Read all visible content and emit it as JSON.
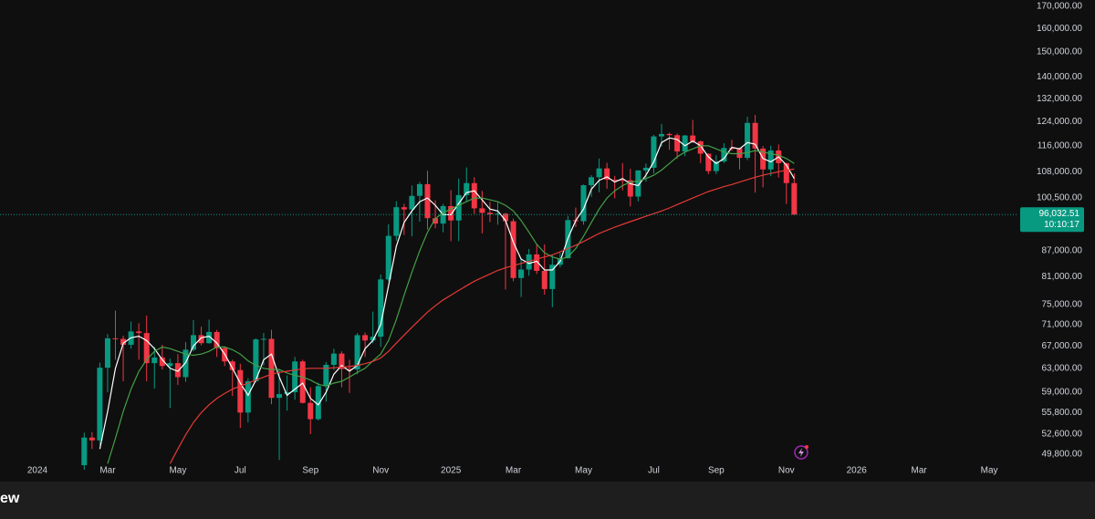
{
  "chart_data": {
    "type": "candlestick",
    "log_scale": true,
    "grid": false,
    "up_color": "#089981",
    "down_color": "#f23645",
    "ylim": [
      48300,
      173000
    ],
    "yticks": [
      {
        "value": 170000,
        "label": "170,000.00"
      },
      {
        "value": 160000,
        "label": "160,000.00"
      },
      {
        "value": 150000,
        "label": "150,000.00"
      },
      {
        "value": 140000,
        "label": "140,000.00"
      },
      {
        "value": 132000,
        "label": "132,000.00"
      },
      {
        "value": 124000,
        "label": "124,000.00"
      },
      {
        "value": 116000,
        "label": "116,000.00"
      },
      {
        "value": 108000,
        "label": "108,000.00"
      },
      {
        "value": 100500,
        "label": "100,500.00"
      },
      {
        "value": 87000,
        "label": "87,000.00"
      },
      {
        "value": 81000,
        "label": "81,000.00"
      },
      {
        "value": 75000,
        "label": "75,000.00"
      },
      {
        "value": 71000,
        "label": "71,000.00"
      },
      {
        "value": 67000,
        "label": "67,000.00"
      },
      {
        "value": 63000,
        "label": "63,000.00"
      },
      {
        "value": 59000,
        "label": "59,000.00"
      },
      {
        "value": 55800,
        "label": "55,800.00"
      },
      {
        "value": 52600,
        "label": "52,600.00"
      },
      {
        "value": 49800,
        "label": "49,800.00"
      }
    ],
    "last_price": {
      "value": 96032.51,
      "label": "96,032.51",
      "countdown": "10:10:17",
      "color": "#089981"
    },
    "categories": [
      "2024",
      null,
      null,
      null,
      null,
      null,
      null,
      null,
      null,
      "Mar",
      null,
      null,
      null,
      null,
      null,
      null,
      null,
      null,
      "May",
      null,
      null,
      null,
      null,
      null,
      null,
      null,
      "Jul",
      null,
      null,
      null,
      null,
      null,
      null,
      null,
      null,
      "Sep",
      null,
      null,
      null,
      null,
      null,
      null,
      null,
      null,
      "Nov",
      null,
      null,
      null,
      null,
      null,
      null,
      null,
      null,
      "2025",
      null,
      null,
      null,
      null,
      null,
      null,
      null,
      "Mar",
      null,
      null,
      null,
      null,
      null,
      null,
      null,
      null,
      "May",
      null,
      null,
      null,
      null,
      null,
      null,
      null,
      null,
      "Jul",
      null,
      null,
      null,
      null,
      null,
      null,
      null,
      "Sep",
      null,
      null,
      null,
      null,
      null,
      null,
      null,
      null,
      "Nov",
      null,
      null,
      null,
      null,
      null,
      null,
      null,
      null,
      "2026",
      null,
      null,
      null,
      null,
      null,
      null,
      null,
      "Mar",
      null,
      null,
      null,
      null,
      null,
      null,
      null,
      null,
      "May",
      null,
      null,
      null
    ],
    "open": [
      null,
      null,
      null,
      null,
      null,
      null,
      48300,
      52100,
      51700,
      63100,
      68400,
      68300,
      67200,
      69700,
      69400,
      63900,
      64900,
      63400,
      63900,
      61500,
      66300,
      69000,
      67500,
      69600,
      66600,
      64200,
      62700,
      55800,
      60800,
      68200,
      68300,
      58100,
      58700,
      59000,
      64200,
      57300,
      54800,
      60000,
      63600,
      65600,
      62900,
      62800,
      69000,
      68000,
      68700,
      80400,
      90600,
      98000,
      97400,
      101100,
      104400,
      95100,
      93700,
      98300,
      94500,
      101300,
      104700,
      97700,
      96500,
      96100,
      96300,
      94300,
      80700,
      82600,
      86100,
      82300,
      78300,
      83700,
      85200,
      94600,
      94300,
      104100,
      106400,
      109000,
      105700,
      105600,
      105500,
      100900,
      108400,
      109200,
      119000,
      119800,
      119400,
      114200,
      119300,
      117400,
      113500,
      108200,
      111100,
      115300,
      115200,
      112200,
      123500,
      115100,
      108700,
      114500,
      110600,
      104700,
      null,
      null,
      null,
      null,
      null,
      null,
      null,
      null,
      null,
      null,
      null,
      null,
      null,
      null,
      null,
      null,
      null,
      null,
      null,
      null,
      null,
      null,
      null,
      null,
      null,
      null,
      null,
      null
    ],
    "high": [
      null,
      null,
      null,
      null,
      null,
      null,
      52800,
      52900,
      64000,
      69200,
      73800,
      68900,
      71600,
      71300,
      72800,
      66800,
      67200,
      64700,
      65500,
      67700,
      71900,
      70600,
      72000,
      70000,
      66900,
      64500,
      63800,
      61300,
      68400,
      69400,
      70000,
      62700,
      61800,
      65000,
      64500,
      59800,
      60600,
      64100,
      66500,
      66000,
      64500,
      69400,
      69500,
      73600,
      81500,
      93500,
      99600,
      98900,
      104000,
      105000,
      108300,
      99900,
      98900,
      102700,
      106000,
      109300,
      106400,
      102500,
      99500,
      99500,
      96500,
      95000,
      85300,
      87400,
      88700,
      88500,
      86000,
      86500,
      95700,
      97900,
      104300,
      107000,
      112000,
      110700,
      106800,
      110600,
      108900,
      108500,
      110500,
      119500,
      123200,
      120200,
      120000,
      119500,
      124500,
      117600,
      113600,
      113000,
      116800,
      117900,
      115400,
      125600,
      126200,
      115900,
      116000,
      116400,
      110700,
      107500,
      null,
      null,
      null,
      null,
      null,
      null,
      null,
      null,
      null,
      null,
      null,
      null,
      null,
      null,
      null,
      null,
      null,
      null,
      null,
      null,
      null,
      null,
      null,
      null,
      null,
      null,
      null,
      null
    ],
    "low": [
      null,
      null,
      null,
      null,
      null,
      null,
      47700,
      50500,
      51000,
      59000,
      64500,
      60800,
      66500,
      64500,
      60800,
      59600,
      62800,
      56500,
      60200,
      60700,
      66000,
      67100,
      67400,
      65000,
      63400,
      58400,
      53500,
      54300,
      60600,
      63500,
      57100,
      49000,
      56100,
      57800,
      57200,
      52600,
      54600,
      57500,
      62700,
      59800,
      58900,
      62000,
      65000,
      67500,
      66800,
      80000,
      89400,
      90800,
      90500,
      94200,
      92200,
      92500,
      91500,
      89300,
      89300,
      99500,
      96200,
      91200,
      94100,
      93400,
      78200,
      80000,
      76600,
      81200,
      81600,
      77100,
      74500,
      83100,
      85100,
      92800,
      93400,
      100800,
      102100,
      103100,
      100400,
      102600,
      98200,
      99600,
      105100,
      107500,
      115700,
      114700,
      111900,
      112700,
      116800,
      110600,
      107300,
      107300,
      110600,
      114400,
      108700,
      111500,
      102000,
      103500,
      106700,
      106300,
      98900,
      95900,
      null,
      null,
      null,
      null,
      null,
      null,
      null,
      null,
      null,
      null,
      null,
      null,
      null,
      null,
      null,
      null,
      null,
      null,
      null,
      null,
      null,
      null,
      null,
      null,
      null,
      null,
      null,
      null
    ],
    "close": [
      null,
      null,
      null,
      null,
      null,
      null,
      52100,
      51700,
      63100,
      68400,
      68300,
      67200,
      69700,
      69400,
      63900,
      64900,
      63400,
      63900,
      61500,
      66300,
      69000,
      67500,
      69600,
      66600,
      64200,
      62700,
      55800,
      60800,
      68200,
      68300,
      58100,
      58700,
      59000,
      64200,
      57300,
      54800,
      60000,
      63600,
      65600,
      62900,
      62800,
      69000,
      68000,
      68700,
      80400,
      90600,
      98000,
      97400,
      101100,
      104400,
      95100,
      93700,
      98300,
      94500,
      101300,
      104700,
      97700,
      96500,
      96100,
      96300,
      94300,
      80700,
      82600,
      86100,
      82300,
      78300,
      83700,
      85200,
      94600,
      94300,
      104100,
      106400,
      109000,
      105700,
      105600,
      105500,
      100900,
      108400,
      109200,
      119000,
      119800,
      119400,
      114200,
      119300,
      117400,
      113500,
      108200,
      111100,
      115300,
      115200,
      112200,
      123500,
      115100,
      108700,
      114500,
      110600,
      104700,
      96032.51,
      null,
      null,
      null,
      null,
      null,
      null,
      null,
      null,
      null,
      null,
      null,
      null,
      null,
      null,
      null,
      null,
      null,
      null,
      null,
      null,
      null,
      null,
      null,
      null,
      null,
      null,
      null,
      null
    ],
    "moving_averages": [
      {
        "color": "#ffffff",
        "values": [
          null,
          null,
          null,
          null,
          null,
          null,
          null,
          null,
          50500,
          56000,
          63000,
          67500,
          68500,
          68800,
          68000,
          66500,
          64500,
          63000,
          62500,
          64000,
          67000,
          68500,
          68800,
          67500,
          65500,
          63000,
          60500,
          58500,
          61000,
          64500,
          65500,
          61500,
          58500,
          59500,
          60500,
          58000,
          57000,
          59000,
          62000,
          63500,
          62500,
          63500,
          66500,
          68000,
          71000,
          79000,
          88000,
          94000,
          97000,
          99500,
          100500,
          98500,
          96000,
          96000,
          99000,
          102000,
          102500,
          100000,
          97500,
          97000,
          94500,
          89000,
          85000,
          84000,
          84500,
          82500,
          82500,
          84500,
          90000,
          94500,
          97500,
          103000,
          105500,
          106500,
          105000,
          106000,
          104500,
          104000,
          107000,
          111000,
          117000,
          118500,
          118000,
          116000,
          117500,
          116000,
          112500,
          110500,
          112000,
          115500,
          115000,
          117000,
          116500,
          112000,
          111000,
          112500,
          110000,
          106000,
          null,
          null,
          null,
          null,
          null,
          null,
          null,
          null,
          null,
          null,
          null,
          null,
          null,
          null,
          null,
          null,
          null,
          null,
          null,
          null,
          null,
          null,
          null,
          null,
          null,
          null,
          null,
          null
        ]
      },
      {
        "color": "#43a047",
        "values": [
          null,
          null,
          null,
          null,
          null,
          null,
          null,
          null,
          null,
          48500,
          52000,
          56000,
          59500,
          62500,
          64500,
          66000,
          66800,
          66500,
          66000,
          65500,
          65300,
          65500,
          66000,
          66800,
          66800,
          66300,
          65500,
          64300,
          63500,
          63000,
          62800,
          62800,
          62200,
          61800,
          61500,
          61000,
          60300,
          60000,
          60500,
          60800,
          61500,
          62300,
          63000,
          64300,
          65500,
          68000,
          72000,
          77000,
          82000,
          87000,
          91500,
          95000,
          96500,
          97500,
          98500,
          99500,
          100500,
          100500,
          100000,
          99500,
          98500,
          97000,
          94500,
          91500,
          88500,
          86500,
          85500,
          85000,
          85500,
          87500,
          90500,
          94000,
          97500,
          100500,
          102500,
          104000,
          105000,
          105300,
          106000,
          107000,
          108500,
          110500,
          112500,
          114000,
          115000,
          116000,
          116000,
          115000,
          114000,
          113500,
          113500,
          113800,
          114500,
          114000,
          113500,
          113000,
          112000,
          110500,
          null,
          null,
          null,
          null,
          null,
          null,
          null,
          null,
          null,
          null,
          null,
          null,
          null,
          null,
          null,
          null,
          null,
          null,
          null,
          null,
          null,
          null,
          null,
          null,
          null,
          null,
          null,
          null
        ]
      },
      {
        "color": "#e53935",
        "values": [
          null,
          null,
          null,
          null,
          null,
          null,
          null,
          null,
          null,
          null,
          null,
          null,
          null,
          null,
          null,
          null,
          null,
          48500,
          50500,
          52500,
          54300,
          55800,
          57000,
          58000,
          58800,
          59500,
          60000,
          60500,
          61000,
          61500,
          62000,
          62300,
          62500,
          62700,
          62900,
          63000,
          63000,
          63000,
          63100,
          63200,
          63300,
          63500,
          63800,
          64200,
          64800,
          66000,
          67500,
          69000,
          70500,
          72000,
          73500,
          74800,
          76000,
          77000,
          78000,
          79000,
          80000,
          80800,
          81600,
          82400,
          83000,
          83500,
          84000,
          84500,
          85000,
          85500,
          86000,
          86700,
          87500,
          88300,
          89200,
          90200,
          91200,
          92000,
          92800,
          93500,
          94200,
          94900,
          95600,
          96300,
          97000,
          97800,
          98700,
          99600,
          100500,
          101400,
          102300,
          103000,
          103700,
          104300,
          105000,
          105700,
          106400,
          107000,
          107500,
          108000,
          108500,
          108800,
          null,
          null,
          null,
          null,
          null,
          null,
          null,
          null,
          null,
          null,
          null,
          null,
          null,
          null,
          null,
          null,
          null,
          null,
          null,
          null,
          null,
          null,
          null,
          null,
          null,
          null,
          null,
          null
        ]
      }
    ]
  },
  "footer_text": "ew"
}
